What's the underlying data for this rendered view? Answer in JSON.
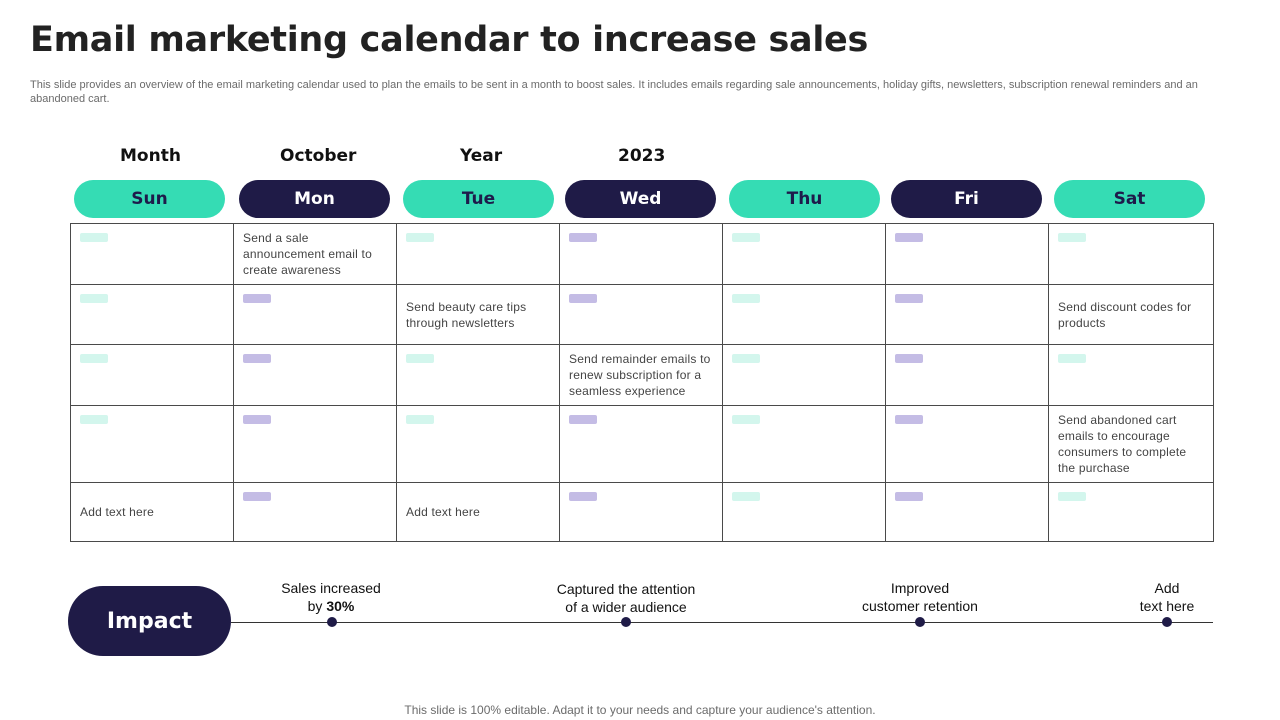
{
  "title": "Email marketing calendar to increase sales",
  "subtitle": "This slide provides an overview of the email marketing calendar used to plan the emails to be sent in a month to boost sales. It includes emails regarding sale announcements, holiday gifts, newsletters, subscription renewal reminders and an abandoned cart.",
  "header": {
    "month_label": "Month",
    "month_value": "October",
    "year_label": "Year",
    "year_value": "2023"
  },
  "days": [
    "Sun",
    "Mon",
    "Tue",
    "Wed",
    "Thu",
    "Fri",
    "Sat"
  ],
  "rows": [
    [
      "",
      "Send a sale announcement email to create awareness",
      "",
      "",
      "",
      "",
      ""
    ],
    [
      "",
      "",
      "Send beauty care tips through newsletters",
      "",
      "",
      "",
      "Send discount codes for products"
    ],
    [
      "",
      "",
      "",
      "Send remainder emails to renew subscription for a seamless experience",
      "",
      "",
      ""
    ],
    [
      "",
      "",
      "",
      "",
      "",
      "",
      "Send abandoned cart emails to encourage consumers to complete the purchase"
    ],
    [
      "Add text here",
      "",
      "Add text here",
      "",
      "",
      "",
      ""
    ]
  ],
  "colors": {
    "teal": "#35dcb4",
    "navy": "#1f1b47",
    "chip_mint": "#d3f6ed",
    "chip_lavender": "#c4bce5"
  },
  "impact": {
    "label": "Impact",
    "milestones": [
      {
        "line1": "Sales increased",
        "line2_prefix": "by ",
        "line2_bold": "30%"
      },
      {
        "line1": "Captured the attention",
        "line2_prefix": "of a wider audience",
        "line2_bold": ""
      },
      {
        "line1": "Improved",
        "line2_prefix": "customer retention",
        "line2_bold": ""
      },
      {
        "line1": "Add",
        "line2_prefix": "text here",
        "line2_bold": ""
      }
    ]
  },
  "footer": "This slide is 100% editable. Adapt it to your needs and capture your audience's attention."
}
